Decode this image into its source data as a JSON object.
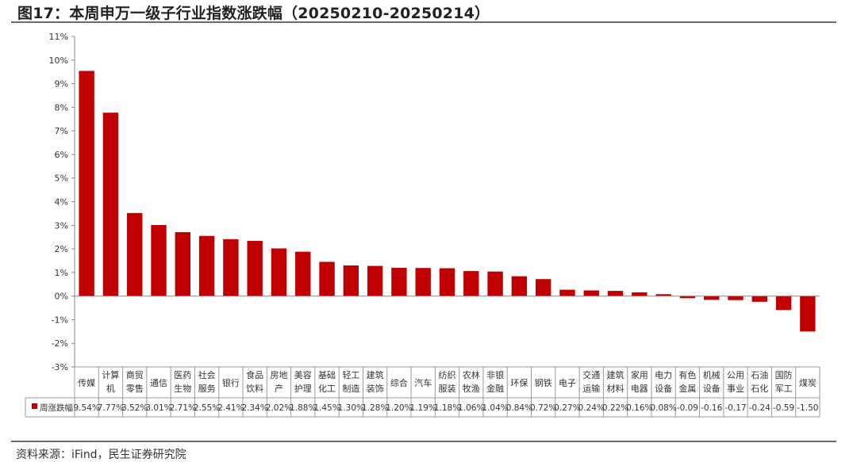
{
  "header": {
    "title": "图17：本周申万一级子行业指数涨跌幅（20250210-20250214）"
  },
  "footer": {
    "source": "资料来源：iFind，民生证券研究院"
  },
  "colors": {
    "bar": "#c00000",
    "text": "#333333",
    "grid_line": "#999999"
  },
  "chart_data": {
    "type": "bar",
    "title": "",
    "xlabel": "",
    "ylabel": "",
    "ylim": [
      -3,
      11
    ],
    "y_ticks": [
      "11%",
      "10%",
      "9%",
      "8%",
      "7%",
      "6%",
      "5%",
      "4%",
      "3%",
      "2%",
      "1%",
      "0%",
      "-1%",
      "-2%",
      "-3%"
    ],
    "y_tick_values": [
      11,
      10,
      9,
      8,
      7,
      6,
      5,
      4,
      3,
      2,
      1,
      0,
      -1,
      -2,
      -3
    ],
    "grid": false,
    "legend": "data-table-left",
    "categories": [
      [
        "传媒"
      ],
      [
        "计算",
        "机"
      ],
      [
        "商贸",
        "零售"
      ],
      [
        "通信"
      ],
      [
        "医药",
        "生物"
      ],
      [
        "社会",
        "服务"
      ],
      [
        "银行"
      ],
      [
        "食品",
        "饮料"
      ],
      [
        "房地",
        "产"
      ],
      [
        "美容",
        "护理"
      ],
      [
        "基础",
        "化工"
      ],
      [
        "轻工",
        "制造"
      ],
      [
        "建筑",
        "装饰"
      ],
      [
        "综合"
      ],
      [
        "汽车"
      ],
      [
        "纺织",
        "服装"
      ],
      [
        "农林",
        "牧渔"
      ],
      [
        "非银",
        "金融"
      ],
      [
        "环保"
      ],
      [
        "钢铁"
      ],
      [
        "电子"
      ],
      [
        "交通",
        "运输"
      ],
      [
        "建筑",
        "材料"
      ],
      [
        "家用",
        "电器"
      ],
      [
        "电力",
        "设备"
      ],
      [
        "有色",
        "金属"
      ],
      [
        "机械",
        "设备"
      ],
      [
        "公用",
        "事业"
      ],
      [
        "石油",
        "石化"
      ],
      [
        "国防",
        "军工"
      ],
      [
        "煤炭"
      ]
    ],
    "series": [
      {
        "name": "周涨跌幅",
        "values": [
          9.54,
          7.77,
          3.52,
          3.01,
          2.71,
          2.55,
          2.41,
          2.34,
          2.02,
          1.88,
          1.45,
          1.3,
          1.28,
          1.2,
          1.19,
          1.18,
          1.06,
          1.04,
          0.84,
          0.72,
          0.27,
          0.24,
          0.22,
          0.16,
          0.08,
          -0.09,
          -0.16,
          -0.17,
          -0.24,
          -0.59,
          -1.5
        ],
        "labels": [
          "9.54%",
          "7.77%",
          "3.52%",
          "3.01%",
          "2.71%",
          "2.55%",
          "2.41%",
          "2.34%",
          "2.02%",
          "1.88%",
          "1.45%",
          "1.30%",
          "1.28%",
          "1.20%",
          "1.19%",
          "1.18%",
          "1.06%",
          "1.04%",
          "0.84%",
          "0.72%",
          "0.27%",
          "0.24%",
          "0.22%",
          "0.16%",
          "0.08%",
          "-0.09",
          "-0.16",
          "-0.17",
          "-0.24",
          "-0.59",
          "-1.50"
        ]
      }
    ]
  }
}
